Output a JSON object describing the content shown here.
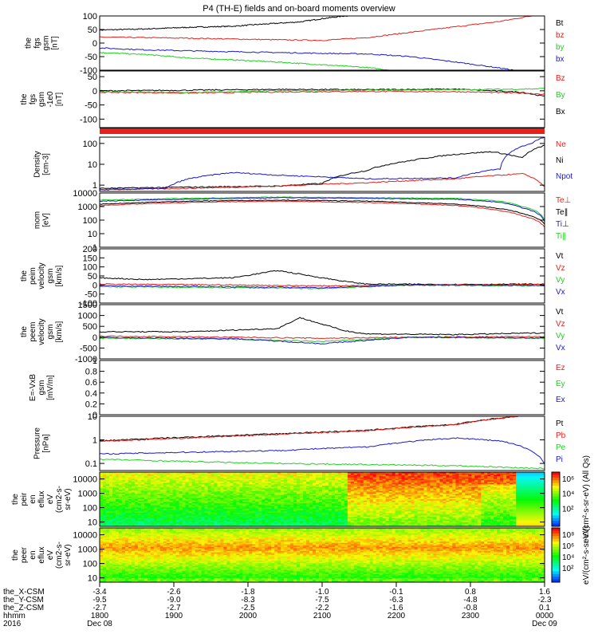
{
  "title": "P4 (TH-E) fields and on-board moments overview",
  "colors": {
    "black": "#000000",
    "red": "#e8201a",
    "green": "#20d020",
    "blue": "#1a1acc"
  },
  "chart_data": [
    {
      "type": "line",
      "name": "fgs-gsm",
      "ylabel": [
        "the",
        "fgs",
        "gsm",
        "[nT]"
      ],
      "ylim": [
        -100,
        100
      ],
      "yticks": [
        -100,
        -50,
        0,
        50,
        100
      ],
      "legend": [
        {
          "label": "Bt",
          "color": "black"
        },
        {
          "label": "bz",
          "color": "red"
        },
        {
          "label": "by",
          "color": "green"
        },
        {
          "label": "bx",
          "color": "blue"
        }
      ],
      "series": [
        {
          "name": "Bt",
          "color": "black",
          "x": [
            0,
            0.1,
            0.2,
            0.3,
            0.35,
            0.45,
            0.5,
            0.55,
            0.6
          ],
          "y": [
            48,
            52,
            58,
            62,
            68,
            78,
            90,
            100,
            105
          ]
        },
        {
          "name": "bz",
          "color": "red",
          "x": [
            0,
            0.2,
            0.4,
            0.5,
            0.6,
            0.7,
            0.8,
            0.9,
            0.97,
            1
          ],
          "y": [
            22,
            18,
            12,
            10,
            20,
            40,
            60,
            80,
            100,
            110
          ]
        },
        {
          "name": "by",
          "color": "green",
          "x": [
            0,
            0.1,
            0.2,
            0.3,
            0.4,
            0.5,
            0.6,
            0.68
          ],
          "y": [
            -35,
            -42,
            -55,
            -62,
            -70,
            -80,
            -90,
            -105
          ]
        },
        {
          "name": "bx",
          "color": "blue",
          "x": [
            0,
            0.1,
            0.3,
            0.5,
            0.6,
            0.7,
            0.8,
            0.9,
            0.93
          ],
          "y": [
            -18,
            -25,
            -32,
            -38,
            -40,
            -50,
            -70,
            -92,
            -100
          ]
        }
      ]
    },
    {
      "type": "line",
      "name": "fgs-gsm-zoom",
      "ylabel": [
        "the",
        "fgs",
        "gsm",
        "-1e0",
        "[nT]"
      ],
      "ylim": [
        -130,
        70
      ],
      "yticks": [
        -100,
        -50,
        0,
        50
      ],
      "legend": [
        {
          "label": "Bz",
          "color": "red"
        },
        {
          "label": "By",
          "color": "green"
        },
        {
          "label": "Bx",
          "color": "black"
        }
      ],
      "series": [
        {
          "name": "Bx",
          "color": "black",
          "x": [
            0,
            0.2,
            0.4,
            0.6,
            0.8,
            0.95,
            1
          ],
          "y": [
            0,
            2,
            5,
            4,
            6,
            -5,
            -20
          ]
        },
        {
          "name": "Bz",
          "color": "red",
          "x": [
            0,
            0.2,
            0.4,
            0.6,
            0.8,
            0.95,
            1
          ],
          "y": [
            -5,
            -8,
            -4,
            -2,
            -3,
            -8,
            -12
          ]
        },
        {
          "name": "By",
          "color": "green",
          "x": [
            0,
            0.2,
            0.4,
            0.6,
            0.8,
            0.95,
            1
          ],
          "y": [
            -3,
            -6,
            0,
            2,
            4,
            6,
            8
          ]
        }
      ]
    },
    {
      "type": "line",
      "name": "density",
      "ylabel": [
        "Density",
        "[cm-3]"
      ],
      "ylim": [
        0.5,
        200
      ],
      "log": true,
      "yticks": [
        1,
        10,
        100
      ],
      "legend": [
        {
          "label": "Ne",
          "color": "red"
        },
        {
          "label": "Ni",
          "color": "black"
        },
        {
          "label": "Npot",
          "color": "blue"
        }
      ],
      "series": [
        {
          "name": "Ni",
          "color": "black",
          "x": [
            0,
            0.2,
            0.4,
            0.5,
            0.6,
            0.7,
            0.8,
            0.88,
            0.95,
            1
          ],
          "y": [
            0.7,
            0.8,
            0.9,
            1.2,
            5,
            15,
            30,
            40,
            20,
            80
          ]
        },
        {
          "name": "Ne",
          "color": "red",
          "x": [
            0,
            0.2,
            0.4,
            0.6,
            0.8,
            0.95,
            1
          ],
          "y": [
            0.6,
            0.7,
            0.9,
            1.3,
            2.0,
            3.5,
            0.8
          ]
        },
        {
          "name": "Npot",
          "color": "blue",
          "x": [
            0,
            0.15,
            0.2,
            0.3,
            0.4,
            0.5,
            0.6,
            0.8,
            0.9,
            0.97,
            1
          ],
          "y": [
            0.6,
            0.7,
            2,
            4,
            3,
            2.5,
            2.0,
            2.2,
            6,
            100,
            200
          ]
        }
      ]
    },
    {
      "type": "line",
      "name": "temperature",
      "ylabel": [
        "mom",
        "[eV]"
      ],
      "ylim": [
        1,
        10000
      ],
      "log": true,
      "yticks": [
        1,
        10,
        100,
        1000,
        10000
      ],
      "legend": [
        {
          "label": "Te⊥",
          "color": "red"
        },
        {
          "label": "Te∥",
          "color": "black"
        },
        {
          "label": "Ti⊥",
          "color": "blue"
        },
        {
          "label": "Ti∥",
          "color": "green"
        }
      ],
      "series": [
        {
          "name": "Ti∥",
          "color": "green",
          "x": [
            0,
            0.2,
            0.4,
            0.6,
            0.8,
            0.9,
            0.95,
            1
          ],
          "y": [
            3000,
            4000,
            5000,
            4500,
            4000,
            2500,
            1000,
            100
          ]
        },
        {
          "name": "Ti⊥",
          "color": "blue",
          "x": [
            0,
            0.2,
            0.4,
            0.6,
            0.8,
            0.9,
            0.95,
            1
          ],
          "y": [
            2500,
            3500,
            4500,
            4000,
            3500,
            2000,
            800,
            80
          ]
        },
        {
          "name": "Te∥",
          "color": "black",
          "x": [
            0,
            0.2,
            0.4,
            0.6,
            0.8,
            0.9,
            0.95,
            1
          ],
          "y": [
            1500,
            2500,
            3000,
            2500,
            1500,
            700,
            300,
            50
          ]
        },
        {
          "name": "Te⊥",
          "color": "red",
          "x": [
            0,
            0.2,
            0.4,
            0.6,
            0.8,
            0.9,
            0.95,
            1
          ],
          "y": [
            1200,
            2000,
            2500,
            2000,
            1200,
            500,
            200,
            30
          ]
        }
      ]
    },
    {
      "type": "line",
      "name": "peim-velocity",
      "ylabel": [
        "the",
        "peim",
        "velocity",
        "gsm",
        "[km/s]"
      ],
      "ylim": [
        -100,
        200
      ],
      "yticks": [
        -100,
        -50,
        0,
        50,
        100,
        150,
        200
      ],
      "legend": [
        {
          "label": "Vt",
          "color": "black"
        },
        {
          "label": "Vz",
          "color": "red"
        },
        {
          "label": "Vy",
          "color": "green"
        },
        {
          "label": "Vx",
          "color": "blue"
        }
      ],
      "series": [
        {
          "name": "Vt",
          "color": "black",
          "x": [
            0,
            0.1,
            0.3,
            0.4,
            0.55,
            0.6,
            0.8,
            1
          ],
          "y": [
            40,
            30,
            40,
            80,
            20,
            5,
            3,
            5
          ]
        },
        {
          "name": "Vz",
          "color": "red",
          "x": [
            0,
            0.3,
            0.5,
            0.7,
            1
          ],
          "y": [
            5,
            0,
            -5,
            0,
            2
          ]
        },
        {
          "name": "Vy",
          "color": "green",
          "x": [
            0,
            0.3,
            0.5,
            0.7,
            1
          ],
          "y": [
            -10,
            -15,
            -20,
            0,
            -5
          ]
        },
        {
          "name": "Vx",
          "color": "blue",
          "x": [
            0,
            0.3,
            0.5,
            0.7,
            1
          ],
          "y": [
            -5,
            -10,
            -15,
            0,
            -3
          ]
        }
      ]
    },
    {
      "type": "line",
      "name": "peem-velocity",
      "ylabel": [
        "the",
        "peem",
        "velocity",
        "gsm",
        "[km/s]"
      ],
      "ylim": [
        -1000,
        1500
      ],
      "yticks": [
        -1000,
        -500,
        0,
        500,
        1000,
        1500
      ],
      "legend": [
        {
          "label": "Vt",
          "color": "black"
        },
        {
          "label": "Vz",
          "color": "red"
        },
        {
          "label": "Vy",
          "color": "green"
        },
        {
          "label": "Vx",
          "color": "blue"
        }
      ],
      "series": [
        {
          "name": "Vt",
          "color": "black",
          "x": [
            0,
            0.2,
            0.4,
            0.45,
            0.55,
            0.6,
            0.8,
            1
          ],
          "y": [
            250,
            250,
            400,
            900,
            300,
            150,
            120,
            200
          ]
        },
        {
          "name": "Vz",
          "color": "red",
          "x": [
            0,
            0.3,
            0.5,
            0.7,
            1
          ],
          "y": [
            50,
            0,
            -50,
            0,
            30
          ]
        },
        {
          "name": "Vy",
          "color": "green",
          "x": [
            0,
            0.3,
            0.5,
            0.7,
            1
          ],
          "y": [
            -50,
            -100,
            -200,
            0,
            -50
          ]
        },
        {
          "name": "Vx",
          "color": "blue",
          "x": [
            0,
            0.3,
            0.5,
            0.7,
            1
          ],
          "y": [
            -20,
            -60,
            -300,
            0,
            -40
          ]
        }
      ]
    },
    {
      "type": "line",
      "name": "efield",
      "ylabel": [
        "E=-VxB",
        "gsm",
        "[mV/m]"
      ],
      "ylim": [
        0,
        1
      ],
      "yticks": [
        0,
        0.2,
        0.4,
        0.6,
        0.8,
        1.0
      ],
      "legend": [
        {
          "label": "Ez",
          "color": "red"
        },
        {
          "label": "Ey",
          "color": "green"
        },
        {
          "label": "Ex",
          "color": "blue"
        }
      ],
      "series": []
    },
    {
      "type": "line",
      "name": "pressure",
      "ylabel": [
        "Pressure",
        "[nPa]"
      ],
      "ylim": [
        0.05,
        10
      ],
      "log": true,
      "yticks": [
        0.1,
        1.0,
        10.0
      ],
      "legend": [
        {
          "label": "Pt",
          "color": "black"
        },
        {
          "label": "Pb",
          "color": "red"
        },
        {
          "label": "Pe",
          "color": "green"
        },
        {
          "label": "Pi",
          "color": "blue"
        }
      ],
      "series": [
        {
          "name": "Pt",
          "color": "black",
          "x": [
            0,
            0.2,
            0.4,
            0.6,
            0.8,
            0.94
          ],
          "y": [
            0.9,
            1.3,
            1.8,
            2.5,
            4.5,
            10
          ]
        },
        {
          "name": "Pb",
          "color": "red",
          "x": [
            0,
            0.2,
            0.4,
            0.6,
            0.8,
            0.94
          ],
          "y": [
            0.85,
            1.2,
            1.7,
            2.4,
            4.4,
            9.8
          ]
        },
        {
          "name": "Pi",
          "color": "blue",
          "x": [
            0,
            0.2,
            0.4,
            0.6,
            0.8,
            0.9,
            1
          ],
          "y": [
            0.25,
            0.3,
            0.35,
            0.5,
            1.2,
            0.9,
            0.1
          ]
        },
        {
          "name": "Pe",
          "color": "green",
          "x": [
            0,
            0.2,
            0.4,
            0.6,
            0.8,
            0.9,
            1
          ],
          "y": [
            0.15,
            0.12,
            0.1,
            0.09,
            0.08,
            0.07,
            0.06
          ]
        }
      ]
    },
    {
      "type": "heatmap",
      "name": "peir-spectrogram",
      "ylabel": [
        "the",
        "peir",
        "en",
        "eflux",
        "eV",
        "(cm2-s-",
        "sr-eV)"
      ],
      "ylim": [
        5,
        30000
      ],
      "log": true,
      "yticks": [
        10,
        100,
        1000,
        10000
      ],
      "colorbar": {
        "ticks": [
          "10⁶",
          "10⁴",
          "10²"
        ],
        "label": "eV/(cm²-s-sr-eV) (All Qs)"
      }
    },
    {
      "type": "heatmap",
      "name": "peer-spectrogram",
      "ylabel": [
        "the",
        "peer",
        "en",
        "eflux",
        "eV",
        "(cm2-s-",
        "sr-eV)"
      ],
      "ylim": [
        5,
        30000
      ],
      "log": true,
      "yticks": [
        10,
        100,
        1000,
        10000
      ],
      "colorbar": {
        "ticks": [
          "10⁸",
          "10⁶",
          "10⁴",
          "10²"
        ],
        "label": "eV/(cm²-s-sr-eV)"
      }
    }
  ],
  "xaxis": {
    "rows": [
      {
        "label": "the_X-CSM",
        "values": [
          "-3.4",
          "-2.6",
          "-1.8",
          "-1.0",
          "-0.1",
          "0.8",
          "1.6"
        ]
      },
      {
        "label": "the_Y-CSM",
        "values": [
          "-9.5",
          "-9.0",
          "-8.3",
          "-7.5",
          "-6.3",
          "-4.8",
          "-2.3"
        ]
      },
      {
        "label": "the_Z-CSM",
        "values": [
          "-2.7",
          "-2.7",
          "-2.5",
          "-2.2",
          "-1.6",
          "-0.8",
          "0.1"
        ]
      },
      {
        "label": "hhmm",
        "values": [
          "1800",
          "1900",
          "2000",
          "2100",
          "2200",
          "2300",
          "0000"
        ]
      }
    ],
    "year": "2016",
    "dates": [
      "Dec 08",
      "Dec 09"
    ]
  }
}
